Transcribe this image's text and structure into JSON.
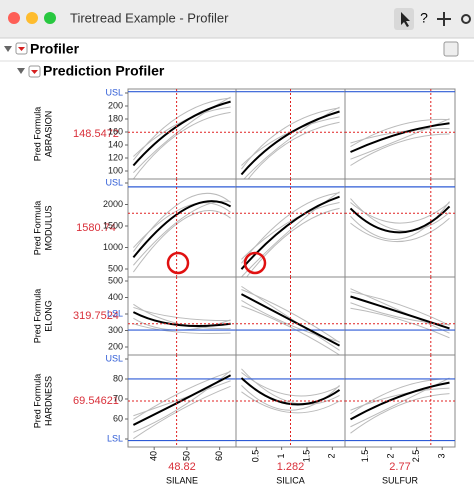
{
  "window": {
    "title": "Tiretread Example - Profiler"
  },
  "outline": {
    "title": "Profiler"
  },
  "profiler": {
    "title": "Prediction Profiler",
    "rows": [
      {
        "label": [
          "Pred Formula",
          "ABRASION"
        ],
        "current": "148.5472",
        "ticks": [
          "USL",
          "200",
          "180",
          "160",
          "140",
          "120",
          "100"
        ]
      },
      {
        "label": [
          "Pred Formula",
          "MODULUS"
        ],
        "current": "1580.74",
        "ticks": [
          "USL",
          "2000",
          "1500",
          "1000",
          "500"
        ]
      },
      {
        "label": [
          "Pred Formula",
          "ELONG"
        ],
        "current": "319.7524",
        "ticks": [
          "500",
          "400",
          "LSL",
          "300",
          "200"
        ]
      },
      {
        "label": [
          "Pred Formula",
          "HARDNESS"
        ],
        "current": "69.54621",
        "ticks": [
          "USL",
          "80",
          "70",
          "60",
          "LSL"
        ]
      }
    ],
    "columns": [
      {
        "name": "SILANE",
        "current": "48.82",
        "ticks": [
          "40",
          "50",
          "60"
        ]
      },
      {
        "name": "SILICA",
        "current": "1.282",
        "ticks": [
          "0.5",
          "1",
          "1.5",
          "2"
        ]
      },
      {
        "name": "SULFUR",
        "current": "2.77",
        "ticks": [
          "1.5",
          "2",
          "2.5",
          "3"
        ]
      }
    ]
  }
}
